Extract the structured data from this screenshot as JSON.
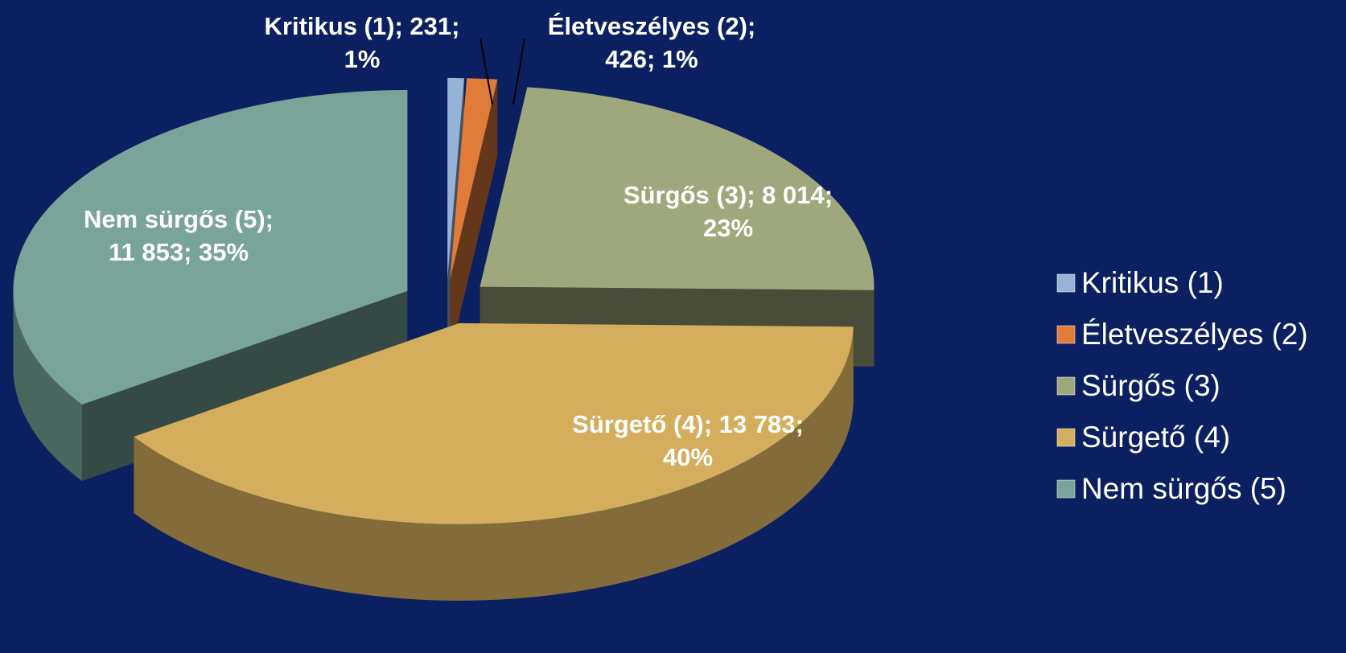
{
  "chart_data": {
    "type": "pie",
    "categories": [
      "Kritikus (1)",
      "Életveszélyes (2)",
      "Sürgős (3)",
      "Sürgető (4)",
      "Nem sürgős (5)"
    ],
    "values": [
      231,
      426,
      8014,
      13783,
      11853
    ],
    "value_labels": [
      "231",
      "426",
      "8 014",
      "13 783",
      "11 853"
    ],
    "percent_labels": [
      "1%",
      "1%",
      "23%",
      "40%",
      "35%"
    ],
    "label_separator": "; ",
    "colors": [
      "#95b3d7",
      "#e07b39",
      "#9fa87c",
      "#d4ae5c",
      "#79a49a"
    ],
    "legend": "right"
  }
}
